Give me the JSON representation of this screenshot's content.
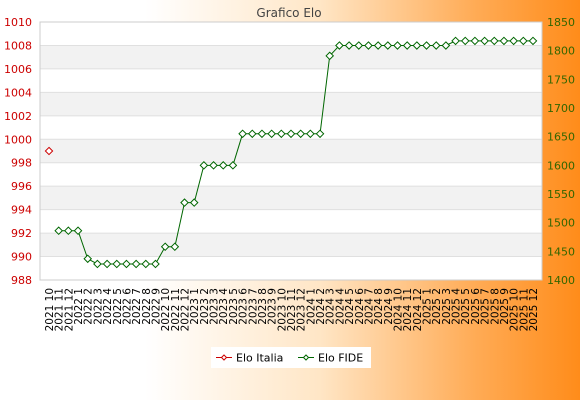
{
  "chart_data": {
    "type": "line",
    "title": "Grafico Elo",
    "categories": [
      "2021 10",
      "2021 11",
      "2021 12",
      "2022 1",
      "2022 2",
      "2022 3",
      "2022 4",
      "2022 5",
      "2022 6",
      "2022 7",
      "2022 8",
      "2022 9",
      "2022 10",
      "2022 11",
      "2022 12",
      "2023 1",
      "2023 2",
      "2023 3",
      "2023 4",
      "2023 5",
      "2023 6",
      "2023 7",
      "2023 8",
      "2023 9",
      "2023 10",
      "2023 11",
      "2023 12",
      "2024 1",
      "2024 2",
      "2024 3",
      "2024 4",
      "2024 5",
      "2024 6",
      "2024 7",
      "2024 8",
      "2024 9",
      "2024 10",
      "2024 11",
      "2024 12",
      "2025 1",
      "2025 2",
      "2025 3",
      "2025 4",
      "2025 5",
      "2025 6",
      "2025 7",
      "2025 8",
      "2025 9",
      "2025 10",
      "2025 11",
      "2025 12"
    ],
    "left_axis": {
      "min": 988,
      "max": 1010,
      "ticks": [
        988,
        990,
        992,
        994,
        996,
        998,
        1000,
        1002,
        1004,
        1006,
        1008,
        1010
      ],
      "color": "#cc0000"
    },
    "right_axis": {
      "min": 1400,
      "max": 1850,
      "ticks": [
        1400,
        1450,
        1500,
        1550,
        1600,
        1650,
        1700,
        1750,
        1800,
        1850
      ],
      "color": "#336600"
    },
    "series": [
      {
        "name": "Elo Italia",
        "axis": "left",
        "color": "#cc0000",
        "values": [
          999,
          null,
          null,
          null,
          null,
          null,
          null,
          null,
          null,
          null,
          null,
          null,
          null,
          null,
          null,
          null,
          null,
          null,
          null,
          null,
          null,
          null,
          null,
          null,
          null,
          null,
          null,
          null,
          null,
          null,
          null,
          null,
          null,
          null,
          null,
          null,
          null,
          null,
          null,
          null,
          null,
          null,
          null,
          null,
          null,
          null,
          null,
          null,
          null,
          null,
          null
        ]
      },
      {
        "name": "Elo FIDE",
        "axis": "right",
        "color": "#006600",
        "values": [
          null,
          1486,
          1486,
          1486,
          1437,
          1428,
          1428,
          1428,
          1428,
          1428,
          1428,
          1428,
          1458,
          1458,
          1535,
          1535,
          1600,
          1600,
          1600,
          1600,
          1655,
          1655,
          1655,
          1655,
          1655,
          1655,
          1655,
          1655,
          1655,
          1791,
          1809,
          1809,
          1809,
          1809,
          1809,
          1809,
          1809,
          1809,
          1809,
          1809,
          1809,
          1809,
          1817,
          1817,
          1817,
          1817,
          1817,
          1817,
          1817,
          1817,
          1817
        ]
      }
    ],
    "grid": true,
    "legend": "bottom-center"
  }
}
